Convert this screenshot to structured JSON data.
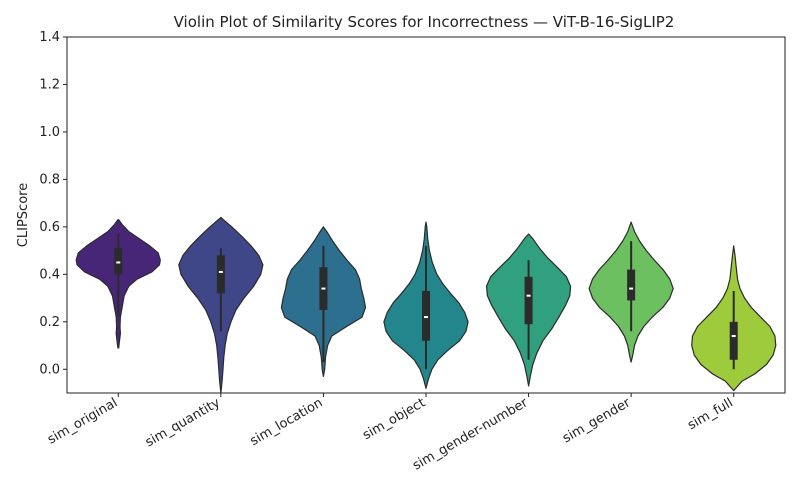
{
  "chart_data": {
    "type": "violin",
    "title": "Violin Plot of Similarity Scores for Incorrectness — ViT-B-16-SigLIP2",
    "xlabel": "",
    "ylabel": "CLIPScore",
    "ylim": [
      -0.1,
      1.4
    ],
    "yticks": [
      "0.0",
      "0.2",
      "0.4",
      "0.6",
      "0.8",
      "1.0",
      "1.2",
      "1.4"
    ],
    "grid": false,
    "categories": [
      "sim_original",
      "sim_quantity",
      "sim_location",
      "sim_object",
      "sim_gender-number",
      "sim_gender",
      "sim_full"
    ],
    "series": [
      {
        "name": "sim_original",
        "color": "#482677",
        "min": 0.09,
        "max": 0.63,
        "whisker_low": 0.22,
        "whisker_high": 0.57,
        "q1": 0.4,
        "median": 0.45,
        "q3": 0.51,
        "density": [
          [
            0.09,
            0.01
          ],
          [
            0.12,
            0.03
          ],
          [
            0.15,
            0.05
          ],
          [
            0.18,
            0.04
          ],
          [
            0.22,
            0.05
          ],
          [
            0.27,
            0.1
          ],
          [
            0.31,
            0.14
          ],
          [
            0.35,
            0.25
          ],
          [
            0.38,
            0.45
          ],
          [
            0.41,
            0.8
          ],
          [
            0.44,
            0.98
          ],
          [
            0.46,
            1.0
          ],
          [
            0.49,
            0.95
          ],
          [
            0.52,
            0.75
          ],
          [
            0.55,
            0.5
          ],
          [
            0.58,
            0.25
          ],
          [
            0.61,
            0.09
          ],
          [
            0.63,
            0.01
          ]
        ]
      },
      {
        "name": "sim_quantity",
        "color": "#3f4788",
        "min": -0.1,
        "max": 0.64,
        "whisker_low": 0.16,
        "whisker_high": 0.51,
        "q1": 0.32,
        "median": 0.41,
        "q3": 0.48,
        "density": [
          [
            -0.1,
            0.0
          ],
          [
            -0.05,
            0.03
          ],
          [
            0.0,
            0.05
          ],
          [
            0.05,
            0.07
          ],
          [
            0.1,
            0.1
          ],
          [
            0.15,
            0.15
          ],
          [
            0.2,
            0.24
          ],
          [
            0.25,
            0.36
          ],
          [
            0.3,
            0.55
          ],
          [
            0.35,
            0.78
          ],
          [
            0.4,
            0.95
          ],
          [
            0.44,
            1.0
          ],
          [
            0.48,
            0.9
          ],
          [
            0.52,
            0.72
          ],
          [
            0.56,
            0.5
          ],
          [
            0.6,
            0.26
          ],
          [
            0.63,
            0.06
          ],
          [
            0.64,
            0.0
          ]
        ]
      },
      {
        "name": "sim_location",
        "color": "#2d6f8e",
        "min": -0.03,
        "max": 0.6,
        "whisker_low": 0.03,
        "whisker_high": 0.52,
        "q1": 0.25,
        "median": 0.34,
        "q3": 0.43,
        "density": [
          [
            -0.03,
            0.0
          ],
          [
            0.0,
            0.03
          ],
          [
            0.05,
            0.05
          ],
          [
            0.1,
            0.1
          ],
          [
            0.14,
            0.2
          ],
          [
            0.18,
            0.55
          ],
          [
            0.22,
            0.92
          ],
          [
            0.26,
            1.0
          ],
          [
            0.3,
            0.96
          ],
          [
            0.34,
            0.9
          ],
          [
            0.38,
            0.86
          ],
          [
            0.42,
            0.76
          ],
          [
            0.46,
            0.56
          ],
          [
            0.5,
            0.38
          ],
          [
            0.54,
            0.22
          ],
          [
            0.58,
            0.08
          ],
          [
            0.6,
            0.0
          ]
        ]
      },
      {
        "name": "sim_object",
        "color": "#23868d",
        "min": -0.08,
        "max": 0.62,
        "whisker_low": 0.0,
        "whisker_high": 0.52,
        "q1": 0.12,
        "median": 0.22,
        "q3": 0.33,
        "density": [
          [
            -0.08,
            0.0
          ],
          [
            -0.04,
            0.06
          ],
          [
            0.0,
            0.14
          ],
          [
            0.04,
            0.28
          ],
          [
            0.08,
            0.52
          ],
          [
            0.12,
            0.8
          ],
          [
            0.16,
            0.95
          ],
          [
            0.2,
            1.0
          ],
          [
            0.24,
            0.92
          ],
          [
            0.28,
            0.78
          ],
          [
            0.32,
            0.58
          ],
          [
            0.36,
            0.4
          ],
          [
            0.4,
            0.26
          ],
          [
            0.45,
            0.15
          ],
          [
            0.5,
            0.08
          ],
          [
            0.55,
            0.04
          ],
          [
            0.6,
            0.02
          ],
          [
            0.62,
            0.0
          ]
        ]
      },
      {
        "name": "sim_gender-number",
        "color": "#31a07f",
        "min": -0.07,
        "max": 0.57,
        "whisker_low": 0.04,
        "whisker_high": 0.46,
        "q1": 0.19,
        "median": 0.31,
        "q3": 0.39,
        "density": [
          [
            -0.07,
            0.0
          ],
          [
            -0.03,
            0.04
          ],
          [
            0.02,
            0.1
          ],
          [
            0.07,
            0.2
          ],
          [
            0.12,
            0.34
          ],
          [
            0.17,
            0.55
          ],
          [
            0.22,
            0.72
          ],
          [
            0.27,
            0.88
          ],
          [
            0.31,
            0.98
          ],
          [
            0.35,
            1.0
          ],
          [
            0.39,
            0.9
          ],
          [
            0.43,
            0.68
          ],
          [
            0.47,
            0.45
          ],
          [
            0.51,
            0.26
          ],
          [
            0.55,
            0.1
          ],
          [
            0.57,
            0.0
          ]
        ]
      },
      {
        "name": "sim_gender",
        "color": "#6cc060",
        "min": 0.03,
        "max": 0.62,
        "whisker_low": 0.16,
        "whisker_high": 0.54,
        "q1": 0.29,
        "median": 0.34,
        "q3": 0.42,
        "density": [
          [
            0.03,
            0.0
          ],
          [
            0.06,
            0.04
          ],
          [
            0.1,
            0.08
          ],
          [
            0.14,
            0.16
          ],
          [
            0.18,
            0.3
          ],
          [
            0.22,
            0.5
          ],
          [
            0.26,
            0.75
          ],
          [
            0.3,
            0.92
          ],
          [
            0.34,
            1.0
          ],
          [
            0.38,
            0.92
          ],
          [
            0.42,
            0.76
          ],
          [
            0.46,
            0.55
          ],
          [
            0.5,
            0.36
          ],
          [
            0.54,
            0.2
          ],
          [
            0.58,
            0.08
          ],
          [
            0.62,
            0.0
          ]
        ]
      },
      {
        "name": "sim_full",
        "color": "#9ecb3c",
        "min": -0.09,
        "max": 0.52,
        "whisker_low": 0.0,
        "whisker_high": 0.33,
        "q1": 0.04,
        "median": 0.14,
        "q3": 0.2,
        "density": [
          [
            -0.09,
            0.0
          ],
          [
            -0.05,
            0.2
          ],
          [
            -0.02,
            0.5
          ],
          [
            0.02,
            0.78
          ],
          [
            0.06,
            0.94
          ],
          [
            0.1,
            1.0
          ],
          [
            0.14,
            0.98
          ],
          [
            0.18,
            0.86
          ],
          [
            0.22,
            0.64
          ],
          [
            0.26,
            0.42
          ],
          [
            0.3,
            0.26
          ],
          [
            0.34,
            0.15
          ],
          [
            0.38,
            0.09
          ],
          [
            0.43,
            0.06
          ],
          [
            0.48,
            0.03
          ],
          [
            0.52,
            0.0
          ]
        ]
      }
    ]
  }
}
